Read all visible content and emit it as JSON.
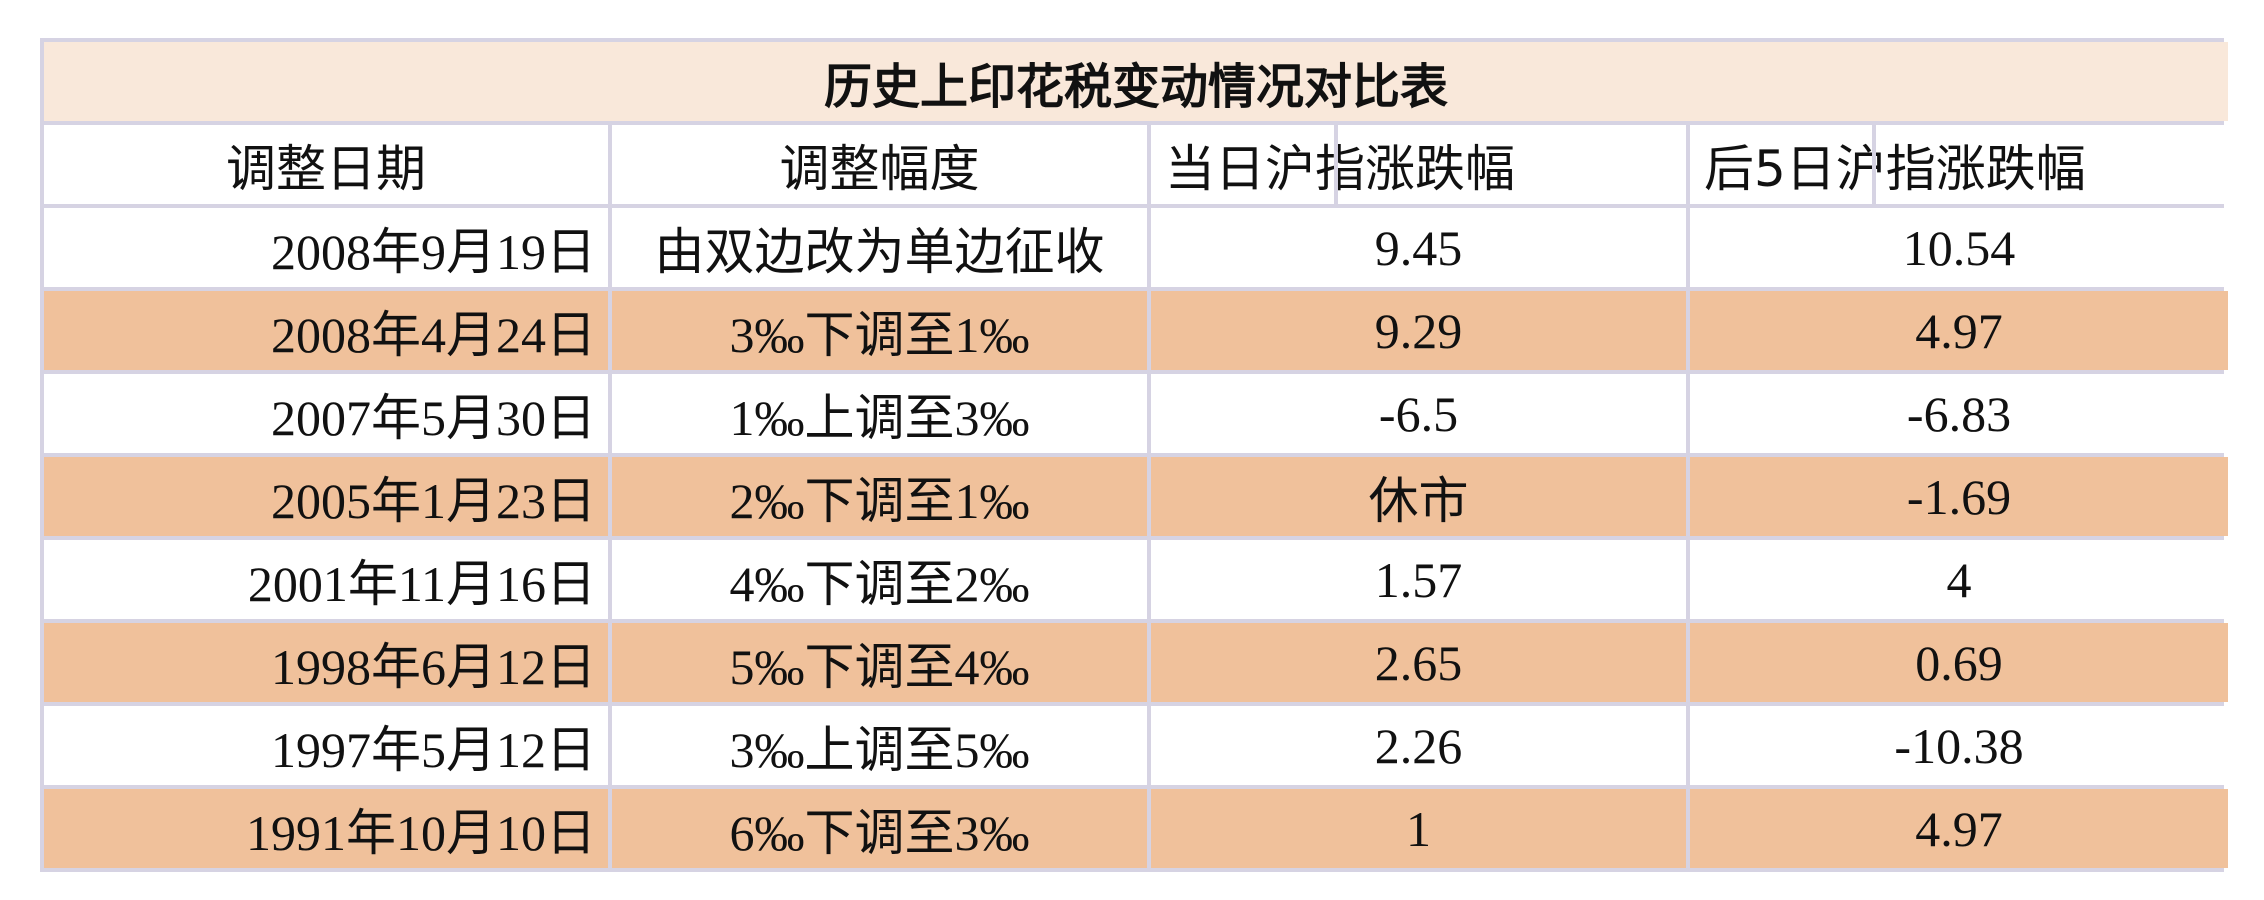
{
  "table": {
    "title": "历史上印花税变动情况对比表",
    "header": [
      "调整日期",
      "调整幅度",
      "当日沪指涨跌幅",
      "后5日沪指涨跌幅"
    ],
    "rows": [
      [
        "2008年9月19日",
        "由双边改为单边征收",
        9.45,
        10.54
      ],
      [
        "2008年4月24日",
        "3‰下调至1‰",
        9.29,
        4.97
      ],
      [
        "2007年5月30日",
        "1‰上调至3‰",
        -6.5,
        -6.83
      ],
      [
        "2005年1月23日",
        "2‰下调至1‰",
        "休市",
        -1.69
      ],
      [
        "2001年11月16日",
        "4‰下调至2‰",
        1.57,
        4
      ],
      [
        "1998年6月12日",
        "5‰下调至4‰",
        2.65,
        0.69
      ],
      [
        "1997年5月12日",
        "3‰上调至5‰",
        2.26,
        -10.38
      ],
      [
        "1991年10月10日",
        "6‰下调至3‰",
        1,
        4.97
      ]
    ]
  }
}
